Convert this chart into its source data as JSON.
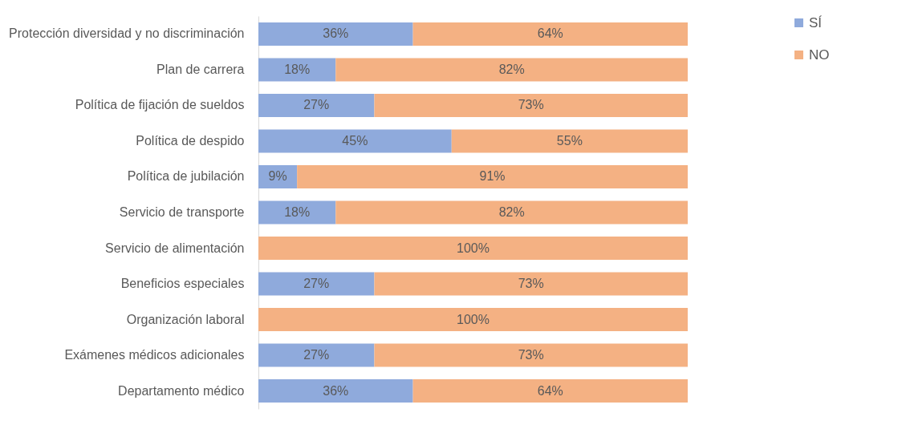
{
  "chart_data": {
    "type": "bar",
    "orientation": "horizontal",
    "stacked": true,
    "legend": "right",
    "grid": false,
    "categories": [
      "Protección diversidad y no discriminación",
      "Plan de carrera",
      "Política de fijación de sueldos",
      "Política de despido",
      "Política de jubilación",
      "Servicio de transporte",
      "Servicio de alimentación",
      "Beneficios especiales",
      "Organización laboral",
      "Exámenes médicos adicionales",
      "Departamento médico"
    ],
    "series": [
      {
        "name": "SÍ",
        "color": "#8faadc",
        "values": [
          36,
          18,
          27,
          45,
          9,
          18,
          0,
          27,
          0,
          27,
          36
        ],
        "value_labels": [
          "36%",
          "18%",
          "27%",
          "45%",
          "9%",
          "18%",
          null,
          "27%",
          null,
          "27%",
          "36%"
        ]
      },
      {
        "name": "NO",
        "color": "#f4b183",
        "values": [
          64,
          82,
          73,
          55,
          91,
          82,
          100,
          73,
          100,
          73,
          64
        ],
        "value_labels": [
          "64%",
          "82%",
          "73%",
          "55%",
          "91%",
          "82%",
          "100%",
          "73%",
          "100%",
          "73%",
          "64%"
        ]
      }
    ]
  }
}
